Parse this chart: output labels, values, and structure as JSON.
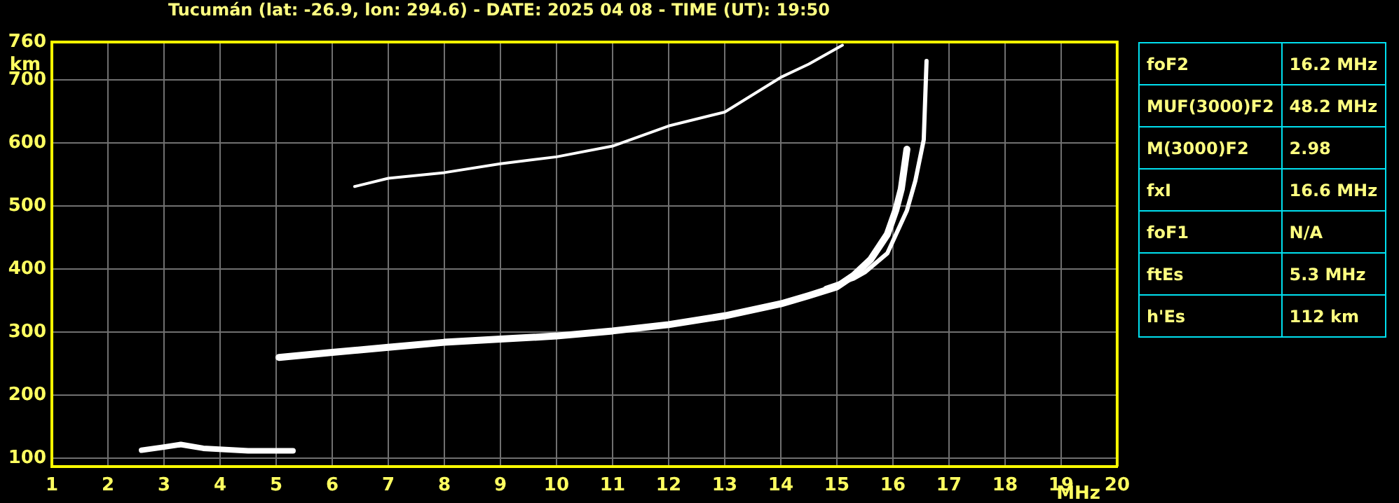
{
  "chart_data": [
    {
      "type": "line",
      "title": "Tucumán (lat: -26.9, lon: 294.6) - DATE: 2025 04 08 - TIME (UT): 19:50",
      "xlabel": "MHz",
      "ylabel": "km",
      "xlim": [
        1,
        20
      ],
      "xticks": [
        1,
        2,
        3,
        4,
        5,
        6,
        7,
        8,
        9,
        10,
        11,
        12,
        13,
        14,
        15,
        16,
        17,
        18,
        19,
        20
      ],
      "ylim": [
        87,
        760
      ],
      "yticks": [
        100,
        200,
        300,
        400,
        500,
        600,
        700,
        760
      ],
      "grid": true,
      "legend": false,
      "marker": "none",
      "line_style": "solid",
      "series": [
        {
          "color": "#ffffff",
          "x": [
            2.6,
            3.0,
            3.3,
            3.7,
            4.5,
            5.3
          ],
          "values": [
            113,
            118,
            122,
            116,
            112,
            112
          ]
        },
        {
          "color": "#ffffff",
          "x": [
            5.05,
            6,
            7,
            8,
            9,
            10,
            11,
            12,
            13,
            14,
            14.5,
            15,
            15.3,
            15.6,
            15.9,
            16.05,
            16.15,
            16.25
          ],
          "values": [
            260,
            268,
            276,
            284,
            289,
            294,
            302,
            312,
            326,
            345,
            358,
            372,
            390,
            415,
            455,
            493,
            527,
            590
          ]
        },
        {
          "color": "#ffffff",
          "x": [
            14.8,
            15.3,
            15.5,
            15.9,
            16.25,
            16.4,
            16.55,
            16.6
          ],
          "values": [
            370,
            385,
            395,
            425,
            493,
            540,
            605,
            730
          ]
        },
        {
          "color": "#ffffff",
          "x": [
            6.4,
            7,
            8,
            9,
            10,
            11,
            12,
            13,
            14,
            14.5,
            15.1
          ],
          "values": [
            531,
            544,
            553,
            567,
            578,
            595,
            627,
            649,
            704,
            725,
            755
          ]
        }
      ]
    },
    {
      "type": "other",
      "y_categories": [
        "foF2",
        "MUF(3000)F2",
        "M(3000)F2",
        "fxI",
        "foF1",
        "ftEs",
        "h'Es"
      ],
      "cell_labels": [
        [
          "16.2 MHz"
        ],
        [
          "48.2 MHz"
        ],
        [
          "2.98"
        ],
        [
          "16.6 MHz"
        ],
        [
          "N/A"
        ],
        [
          "5.3 MHz"
        ],
        [
          "112 km"
        ]
      ]
    }
  ]
}
